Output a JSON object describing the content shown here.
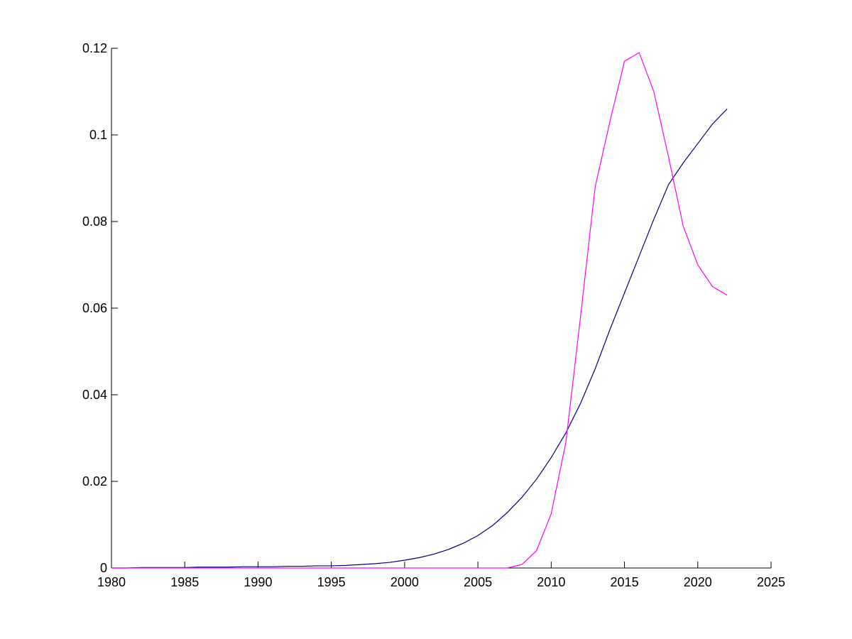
{
  "chart_data": {
    "type": "line",
    "x": [
      1980,
      1981,
      1982,
      1983,
      1984,
      1985,
      1986,
      1987,
      1988,
      1989,
      1990,
      1991,
      1992,
      1993,
      1994,
      1995,
      1996,
      1997,
      1998,
      1999,
      2000,
      2001,
      2002,
      2003,
      2004,
      2005,
      2006,
      2007,
      2008,
      2009,
      2010,
      2011,
      2012,
      2013,
      2014,
      2015,
      2016,
      2017,
      2018,
      2019,
      2020,
      2021,
      2022
    ],
    "series": [
      {
        "color": "#000080",
        "values": [
          0,
          0,
          0.0001,
          0.0001,
          0.0001,
          0.0001,
          0.0002,
          0.0002,
          0.0002,
          0.0003,
          0.0003,
          0.0003,
          0.0004,
          0.0004,
          0.0005,
          0.0005,
          0.0006,
          0.0008,
          0.001,
          0.0013,
          0.0018,
          0.0024,
          0.0032,
          0.0043,
          0.0057,
          0.0075,
          0.0098,
          0.0128,
          0.0163,
          0.0205,
          0.0255,
          0.0312,
          0.038,
          0.046,
          0.055,
          0.0635,
          0.072,
          0.0805,
          0.0885,
          0.0935,
          0.098,
          0.1025,
          0.106
        ]
      },
      {
        "color": "#ff00ff",
        "values": [
          0,
          0,
          0,
          0,
          0,
          0,
          0,
          0,
          0,
          0,
          0,
          0,
          0,
          0,
          0,
          0,
          0,
          0,
          0,
          0,
          0,
          0,
          0,
          0,
          0,
          0,
          0,
          0,
          0.0008,
          0.004,
          0.0125,
          0.029,
          0.058,
          0.088,
          0.103,
          0.117,
          0.119,
          0.11,
          0.095,
          0.079,
          0.07,
          0.065,
          0.063
        ]
      }
    ],
    "xlim": [
      1980,
      2025
    ],
    "xticks": [
      1980,
      1985,
      1990,
      1995,
      2000,
      2005,
      2010,
      2015,
      2020,
      2025
    ],
    "ylim": [
      0,
      0.12
    ],
    "yticks": [
      0,
      0.02,
      0.04,
      0.06,
      0.08,
      0.1,
      0.12
    ]
  }
}
